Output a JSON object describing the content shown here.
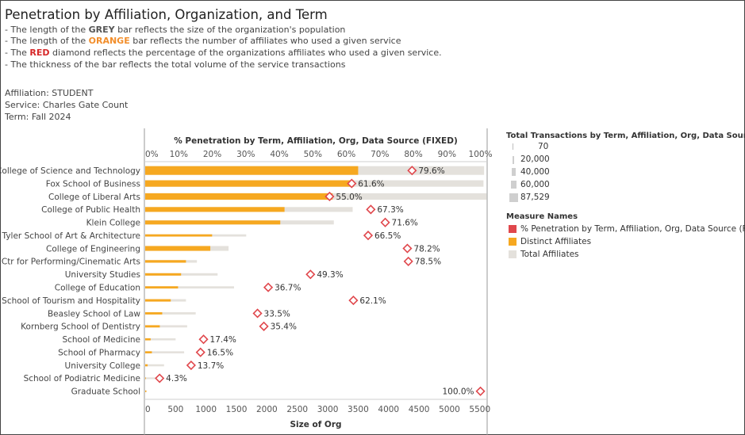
{
  "header": {
    "title": "Penetration by Affiliation, Organization, and Term",
    "note1": {
      "pre": "- The length of the ",
      "key": "GREY",
      "post": " bar reflects the size of the organization's population"
    },
    "note2": {
      "pre": "- The length of the ",
      "key": "ORANGE",
      "post": " bar reflects the number of affiliates who used a given service"
    },
    "note3": {
      "pre": "- The ",
      "key": "RED",
      "post": " diamond reflects the percentage of the organizations affiliates who used a given service."
    },
    "note4": "- The thickness of the bar reflects the total volume of the service transactions"
  },
  "filters": {
    "affiliation": "Affiliation: STUDENT",
    "service": "Service: Charles Gate Count",
    "term": "Term: Fall 2024"
  },
  "colors": {
    "grey": "#e4e1dc",
    "orange": "#f6a820",
    "red": "#e0474c",
    "key_grey": "#555555",
    "key_orange": "#f28e2b",
    "key_red": "#d62728"
  },
  "legend": {
    "size_title": "Total Transactions by Term, Affiliation, Org, Data Source",
    "size_items": [
      "70",
      "20,000",
      "40,000",
      "60,000",
      "87,529"
    ],
    "measure_title": "Measure Names",
    "measure_items": [
      "% Penetration by Term, Affiliation, Org, Data Source (FIXED)",
      "Distinct Affiliates",
      "Total Affiliates"
    ]
  },
  "chart_data": {
    "type": "bar",
    "top_axis_title": "% Penetration by Term, Affiliation, Org, Data Source (FIXED)",
    "top_axis_ticks": [
      "0%",
      "10%",
      "20%",
      "30%",
      "40%",
      "50%",
      "60%",
      "70%",
      "80%",
      "90%",
      "100%"
    ],
    "pct_range": [
      0,
      1.02
    ],
    "xlabel": "Size of Org",
    "x_ticks": [
      "0",
      "500",
      "1000",
      "1500",
      "2000",
      "2500",
      "3000",
      "3500",
      "4000",
      "4500",
      "5000",
      "5500"
    ],
    "xlim": [
      0,
      5620
    ],
    "categories": [
      "College of Science and Technology",
      "Fox School of Business",
      "College of Liberal Arts",
      "College of Public Health",
      "Klein College",
      "Tyler School of Art & Architecture",
      "College of Engineering",
      "Ctr for Performing/Cinematic Arts",
      "University Studies",
      "College of Education",
      "School of Tourism and Hospitality",
      "Beasley School of Law",
      "Kornberg School of Dentistry",
      "School of Medicine",
      "School of Pharmacy",
      "University College",
      "School of Podiatric Medicine",
      "Graduate School"
    ],
    "series": [
      {
        "name": "Total Affiliates",
        "values": [
          5570,
          5560,
          5610,
          3410,
          3100,
          1660,
          1370,
          850,
          1190,
          1460,
          670,
          830,
          690,
          500,
          640,
          310,
          190,
          20
        ]
      },
      {
        "name": "Distinct Affiliates",
        "values": [
          3500,
          3430,
          3080,
          2290,
          2220,
          1100,
          1070,
          670,
          590,
          540,
          420,
          280,
          240,
          90,
          110,
          40,
          10,
          20
        ]
      },
      {
        "name": "% Penetration by Term, Affiliation, Org, Data Source (FIXED)",
        "values": [
          0.796,
          0.616,
          0.55,
          0.673,
          0.716,
          0.665,
          0.782,
          0.785,
          0.493,
          0.367,
          0.621,
          0.335,
          0.354,
          0.174,
          0.165,
          0.137,
          0.043,
          1.0
        ]
      },
      {
        "name": "Total Transactions by Term, Affiliation, Org, Data Source",
        "values": [
          87529,
          60000,
          60000,
          40000,
          30000,
          8000,
          40000,
          12000,
          10000,
          8000,
          10000,
          8000,
          8000,
          6000,
          6000,
          6000,
          2000,
          70
        ]
      }
    ],
    "pct_labels": [
      "79.6%",
      "61.6%",
      "55.0%",
      "67.3%",
      "71.6%",
      "66.5%",
      "78.2%",
      "78.5%",
      "49.3%",
      "36.7%",
      "62.1%",
      "33.5%",
      "35.4%",
      "17.4%",
      "16.5%",
      "13.7%",
      "4.3%",
      "100.0%"
    ]
  }
}
